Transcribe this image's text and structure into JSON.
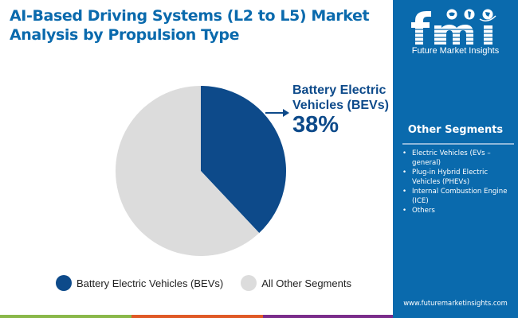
{
  "header": {
    "title": "AI-Based Driving Systems (L2 to L5) Market Analysis by Propulsion Type"
  },
  "chart_data": {
    "type": "pie",
    "title": "AI-Based Driving Systems (L2 to L5) Market Analysis by Propulsion Type",
    "slices": [
      {
        "label": "Battery Electric Vehicles (BEVs)",
        "value": 38,
        "color": "#0d4a8a"
      },
      {
        "label": "All Other Segments",
        "value": 62,
        "color": "#dcdcdc"
      }
    ],
    "start_angle": "12 o'clock",
    "direction": "clockwise",
    "legend_position": "bottom",
    "annotation": {
      "label": "Battery Electric Vehicles (BEVs)",
      "value_text": "38%"
    }
  },
  "callout": {
    "label": "Battery Electric Vehicles (BEVs)",
    "value": "38%"
  },
  "legend": {
    "items": [
      {
        "label": "Battery Electric Vehicles (BEVs)",
        "color": "#0d4a8a"
      },
      {
        "label": "All Other Segments",
        "color": "#dcdcdc"
      }
    ]
  },
  "sidebar": {
    "brand": "fmi",
    "brand_name": "Future Market Insights",
    "other_segments_title": "Other Segments",
    "other_segments": [
      "Electric Vehicles (EVs – general)",
      "Plug-in Hybrid Electric Vehicles (PHEVs)",
      "Internal Combustion Engine (ICE)",
      "Others"
    ],
    "website": "www.futuremarketinsights.com"
  },
  "colors": {
    "title": "#0a6aad",
    "panel": "#0a6aad",
    "accent_dark": "#0d4a8a",
    "footer_bar": [
      "#8ab84a",
      "#e05a26",
      "#7b2d8b"
    ]
  }
}
